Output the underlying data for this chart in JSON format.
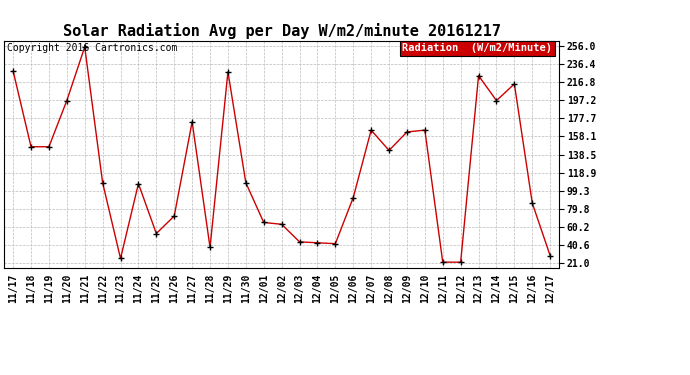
{
  "title": "Solar Radiation Avg per Day W/m2/minute 20161217",
  "copyright": "Copyright 2016 Cartronics.com",
  "legend_label": "Radiation  (W/m2/Minute)",
  "x_labels": [
    "11/17",
    "11/18",
    "11/19",
    "11/20",
    "11/21",
    "11/22",
    "11/23",
    "11/24",
    "11/25",
    "11/26",
    "11/27",
    "11/28",
    "11/29",
    "11/30",
    "12/01",
    "12/02",
    "12/03",
    "12/04",
    "12/05",
    "12/06",
    "12/07",
    "12/08",
    "12/09",
    "12/10",
    "12/11",
    "12/12",
    "12/13",
    "12/14",
    "12/15",
    "12/16",
    "12/17"
  ],
  "values": [
    229,
    147,
    147,
    197,
    255,
    108,
    26,
    107,
    53,
    72,
    174,
    38,
    228,
    108,
    65,
    63,
    44,
    43,
    42,
    92,
    165,
    143,
    163,
    165,
    22,
    22,
    224,
    197,
    215,
    86,
    29
  ],
  "line_color": "#cc0000",
  "marker_color": "#000000",
  "background_color": "#ffffff",
  "grid_color": "#bbbbbb",
  "yticks": [
    21.0,
    40.6,
    60.2,
    79.8,
    99.3,
    118.9,
    138.5,
    158.1,
    177.7,
    197.2,
    216.8,
    236.4,
    256.0
  ],
  "ymin": 21.0,
  "ymax": 256.0,
  "legend_bg": "#cc0000",
  "legend_text_color": "#ffffff",
  "title_fontsize": 11,
  "copyright_fontsize": 7,
  "tick_fontsize": 7,
  "legend_fontsize": 7.5
}
